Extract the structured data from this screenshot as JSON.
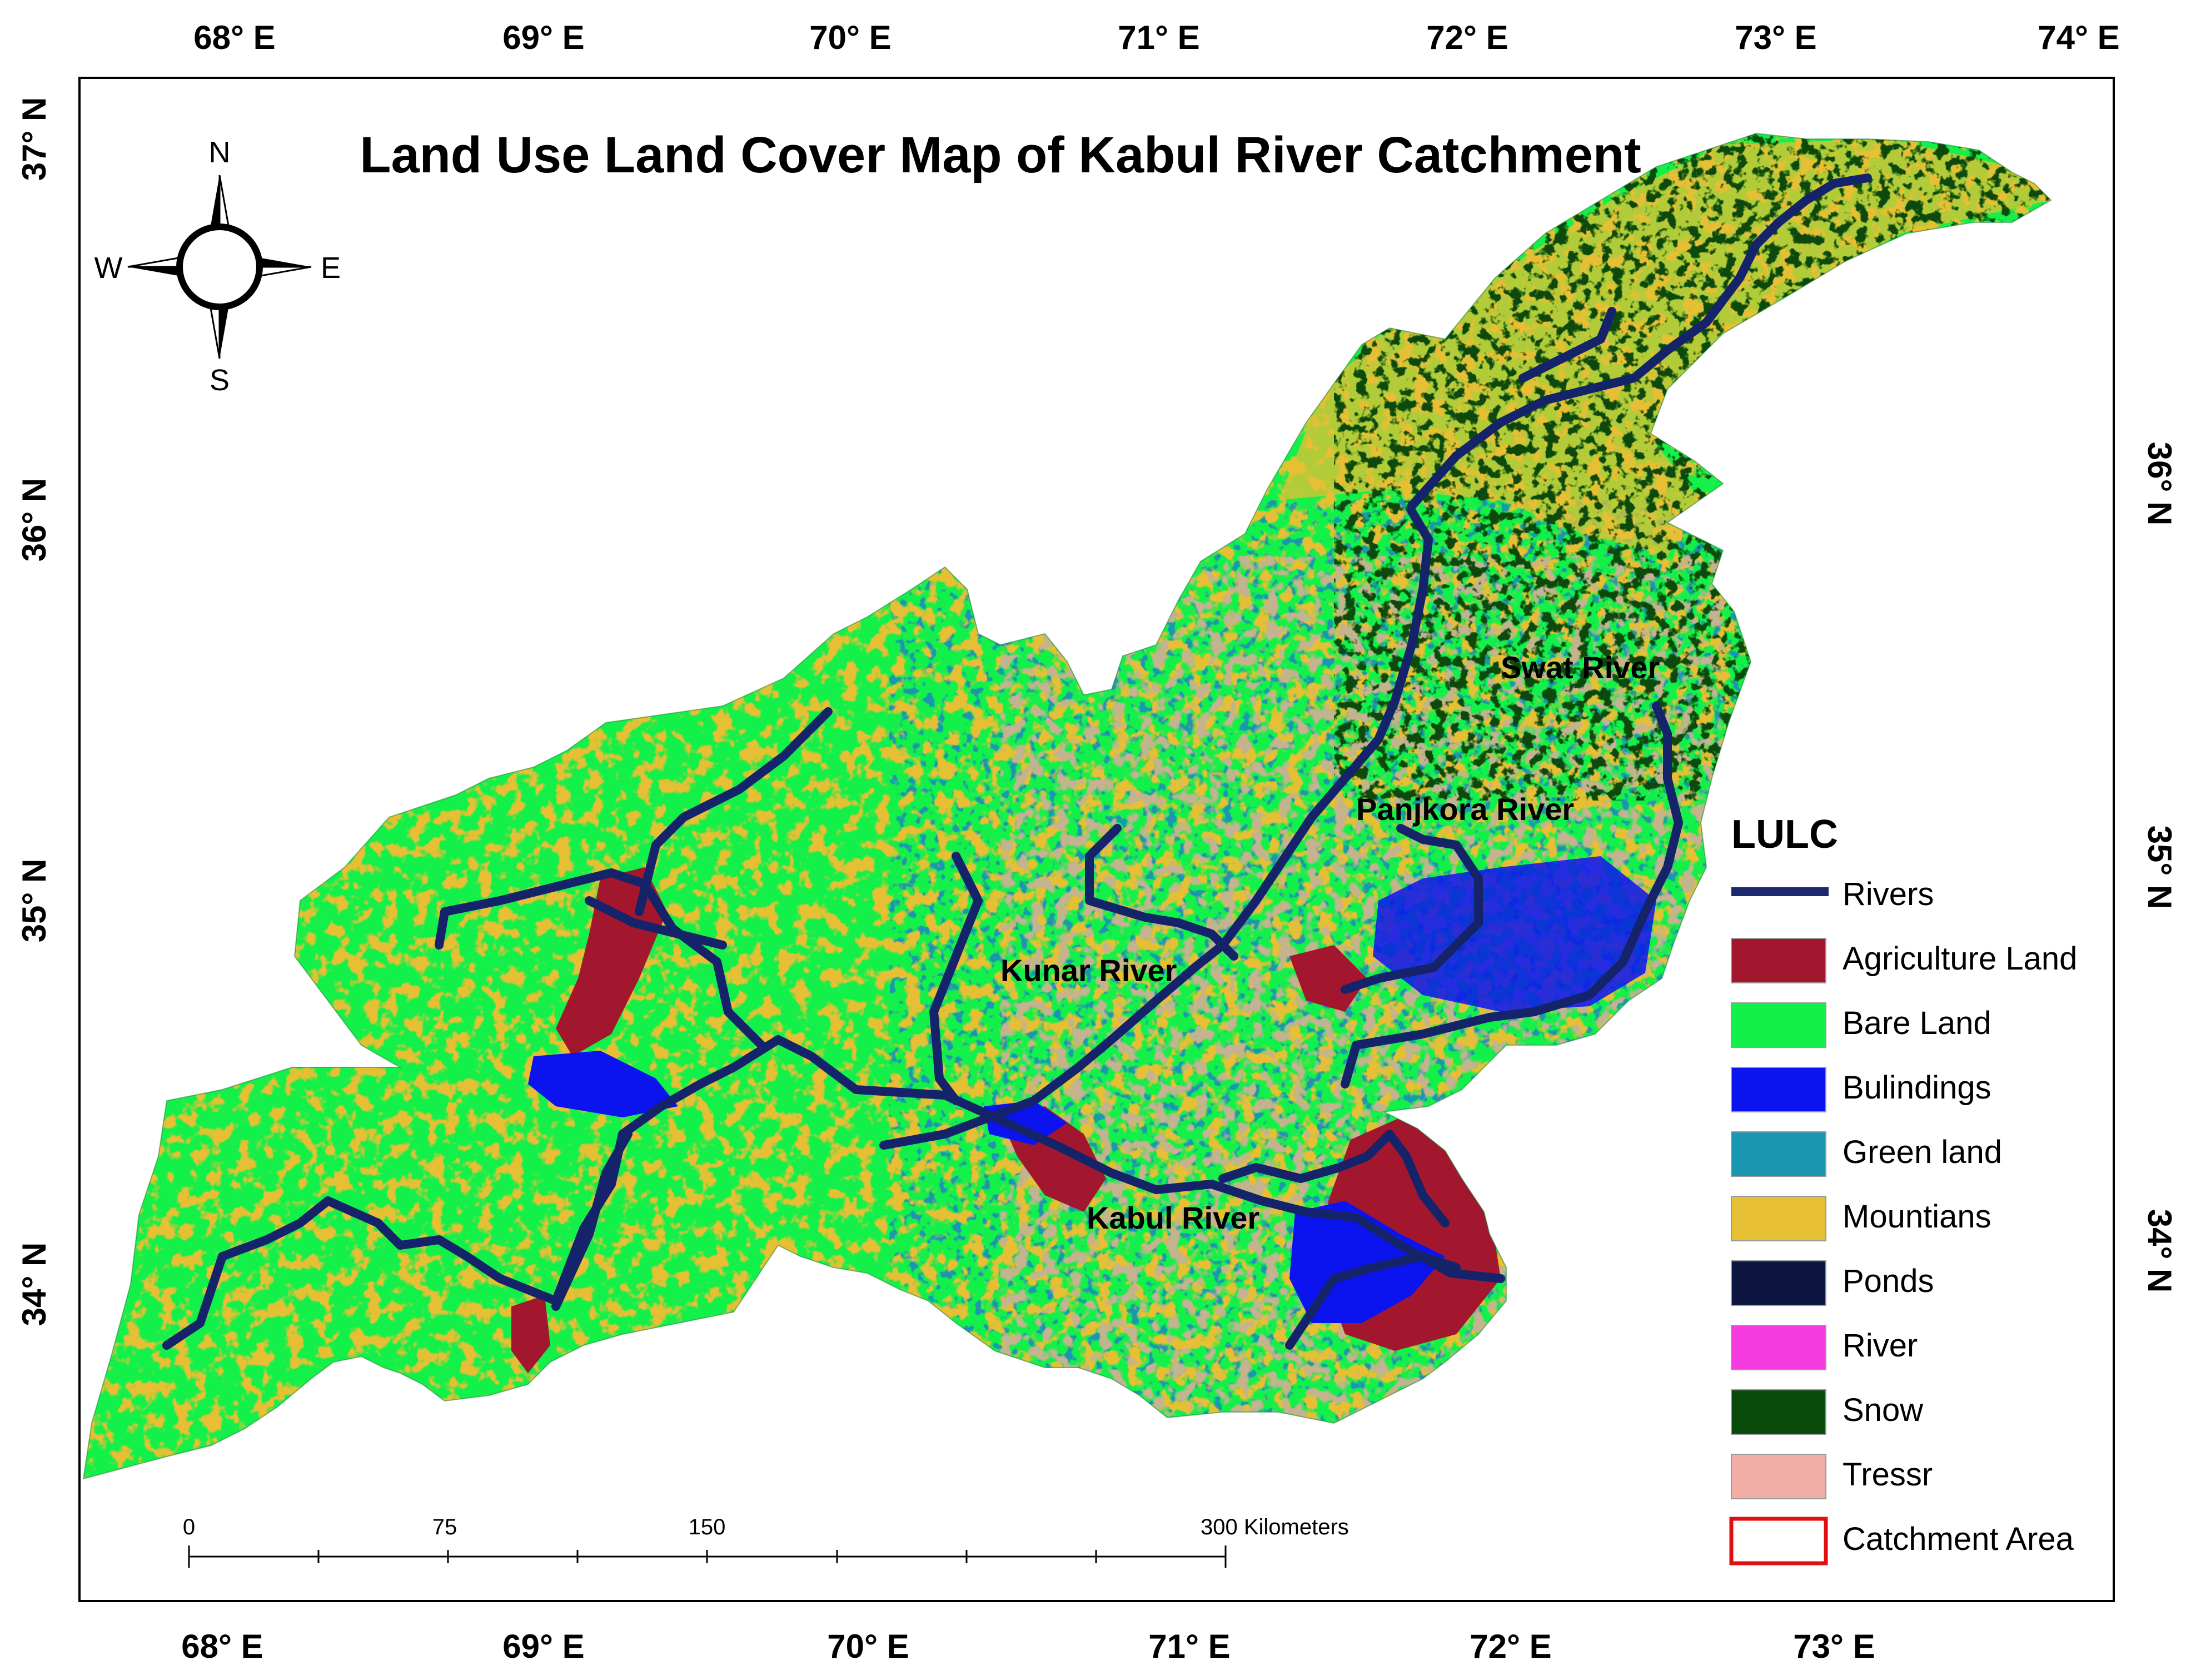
{
  "title": "Land Use Land Cover Map of Kabul River Catchment",
  "longitude_ticks": [
    "68° E",
    "69° E",
    "70° E",
    "71° E",
    "72° E",
    "73° E",
    "74° E"
  ],
  "longitude_ticks_bottom": [
    "68° E",
    "69° E",
    "70° E",
    "71° E",
    "72° E",
    "73° E"
  ],
  "latitude_ticks": [
    "37° N",
    "36° N",
    "35° N",
    "34° N"
  ],
  "compass": {
    "n": "N",
    "s": "S",
    "e": "E",
    "w": "W"
  },
  "river_labels": [
    "Swat River",
    "Panjkora River",
    "Kunar River",
    "Kabul River"
  ],
  "legend": {
    "title": "LULC",
    "items": [
      {
        "label": "Rivers",
        "color": "#1a2a6c",
        "kind": "line"
      },
      {
        "label": "Agriculture Land",
        "color": "#a3172e",
        "kind": "fill"
      },
      {
        "label": "Bare Land",
        "color": "#14f04a",
        "kind": "fill"
      },
      {
        "label": "Bulindings",
        "color": "#0b14ee",
        "kind": "fill"
      },
      {
        "label": "Green land",
        "color": "#1b96b0",
        "kind": "fill"
      },
      {
        "label": "Mountians",
        "color": "#e6bf34",
        "kind": "fill"
      },
      {
        "label": "Ponds",
        "color": "#0b1540",
        "kind": "fill"
      },
      {
        "label": "River",
        "color": "#f53ce1",
        "kind": "fill"
      },
      {
        "label": "Snow",
        "color": "#084a0a",
        "kind": "fill"
      },
      {
        "label": "Tressr",
        "color": "#f0aea6",
        "kind": "fill"
      },
      {
        "label": "Catchment Area",
        "color": "#e01010",
        "kind": "outline"
      }
    ]
  },
  "scale_bar": {
    "labels": [
      "0",
      "75",
      "150",
      "300 Kilometers"
    ]
  },
  "colors": {
    "bare_land": "#14f04a",
    "mountains": "#e6bf34",
    "snow": "#084a0a",
    "agriculture": "#a3172e",
    "buildings": "#0b14ee",
    "tan": "#c3b38f",
    "green_land": "#1b96b0",
    "river": "#14236a"
  }
}
